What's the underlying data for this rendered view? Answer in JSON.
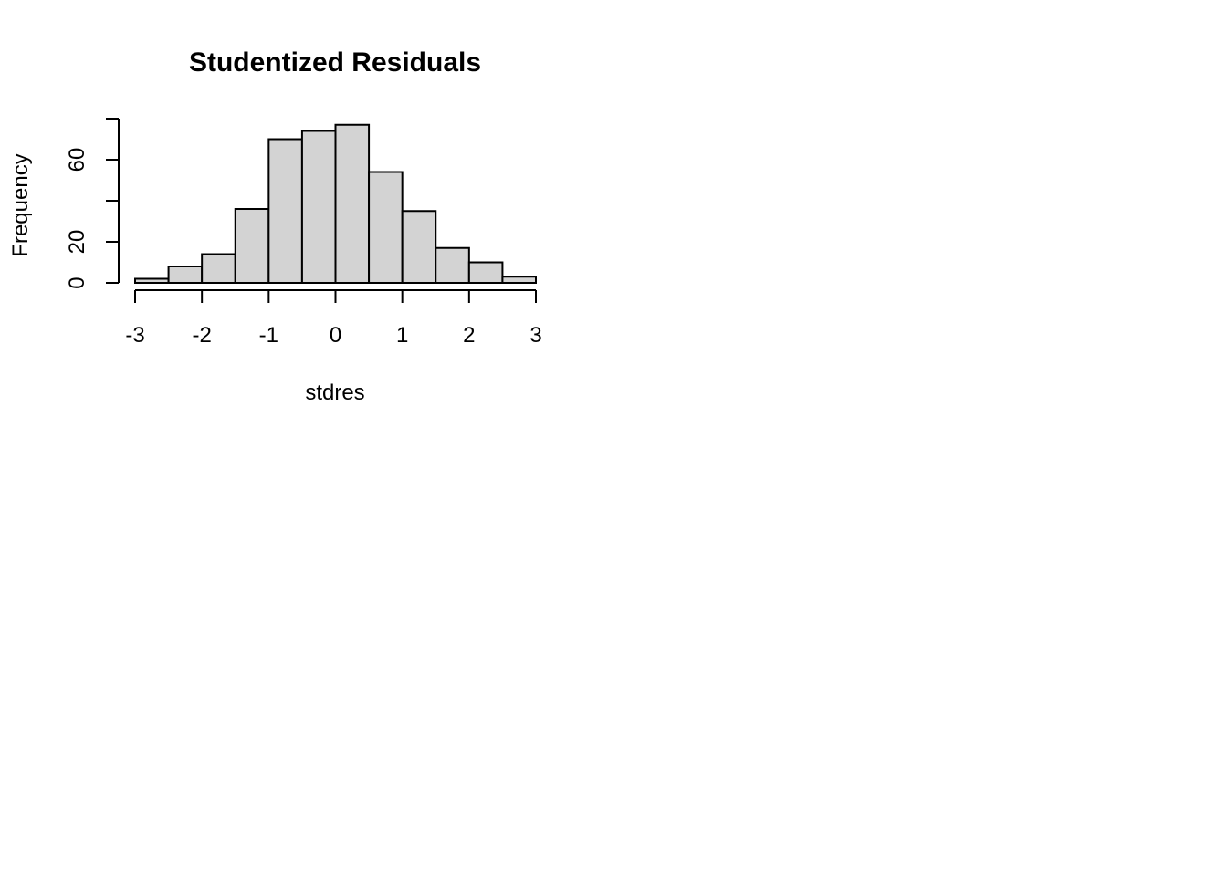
{
  "chart_data": {
    "type": "bar",
    "title": "Studentized Residuals",
    "xlabel": "stdres",
    "ylabel": "Frequency",
    "bin_edges": [
      -3,
      -2.5,
      -2,
      -1.5,
      -1,
      -0.5,
      0,
      0.5,
      1,
      1.5,
      2,
      2.5,
      3
    ],
    "values": [
      2,
      8,
      14,
      36,
      70,
      74,
      77,
      54,
      35,
      17,
      10,
      3
    ],
    "xlim": [
      -3,
      3
    ],
    "ylim": [
      0,
      80
    ],
    "x_ticks": [
      "-3",
      "-2",
      "-1",
      "0",
      "1",
      "2",
      "3"
    ],
    "y_ticks": [
      "0",
      "20",
      "",
      "60",
      ""
    ],
    "bar_color": "#d3d3d3",
    "edge_color": "#000000",
    "grid": false,
    "legend": "none"
  }
}
